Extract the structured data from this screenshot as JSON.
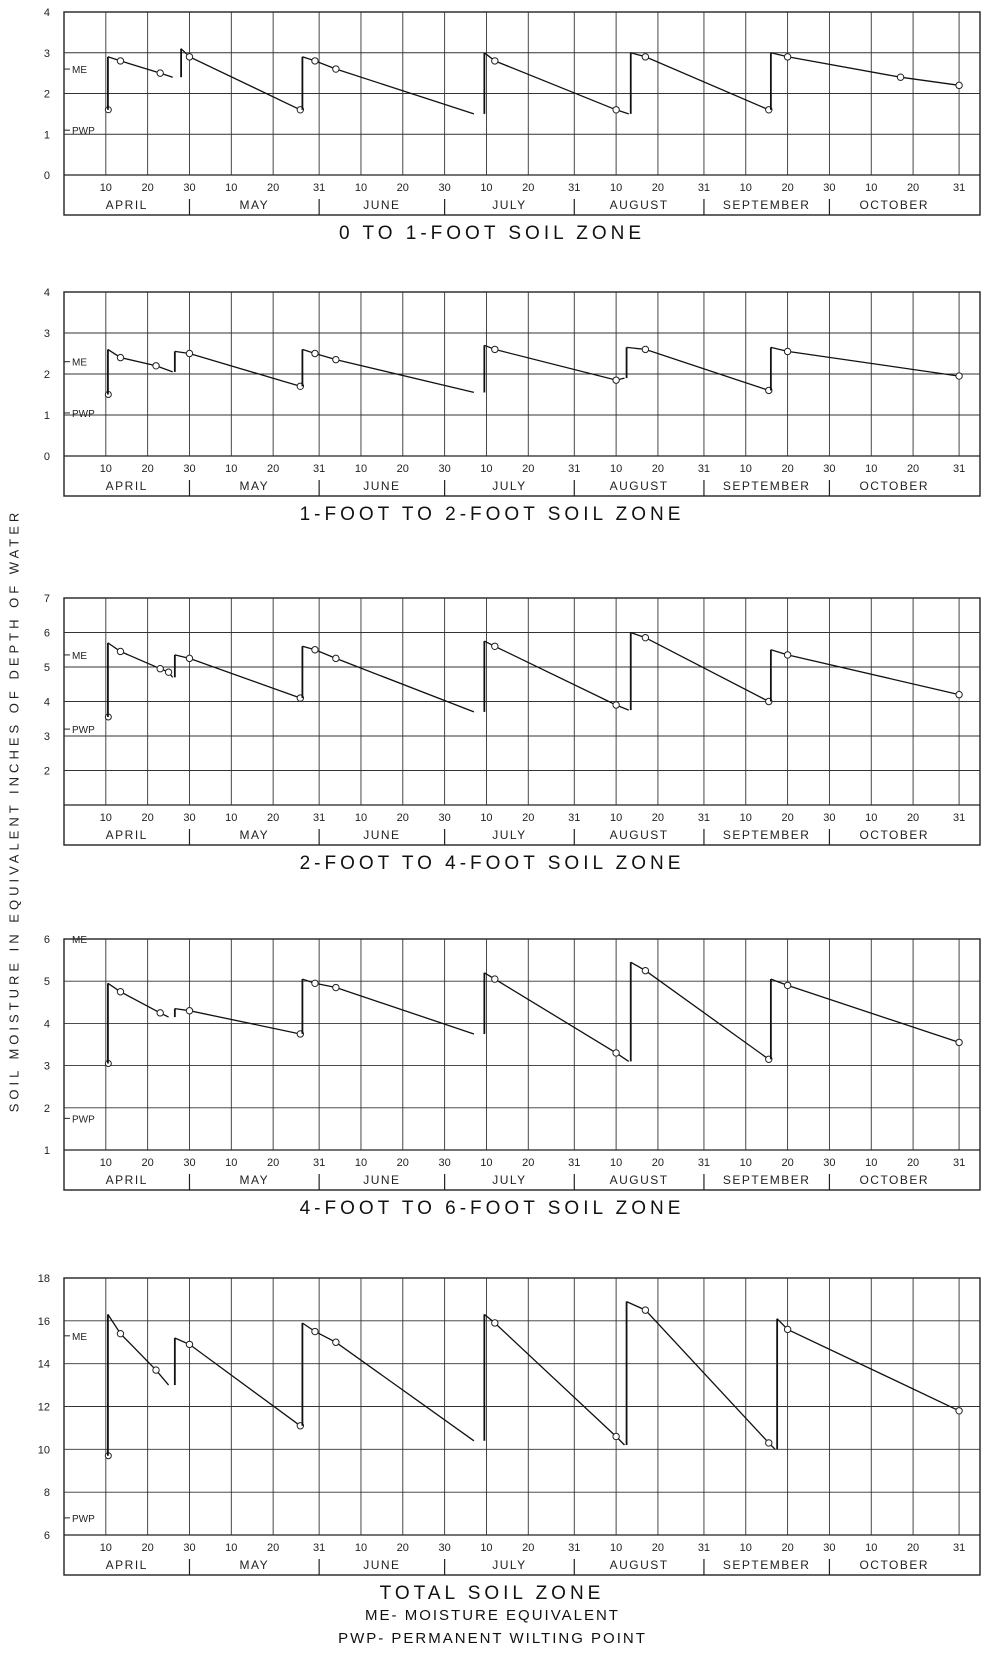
{
  "y_axis_label": "SOIL MOISTURE IN EQUIVALENT INCHES OF DEPTH OF WATER",
  "legend": {
    "me": "ME- MOISTURE EQUIVALENT",
    "pwp": "PWP- PERMANENT WILTING POINT"
  },
  "chart_data": [
    {
      "type": "line",
      "title": "0 TO 1-FOOT SOIL ZONE",
      "ylim": [
        0,
        4
      ],
      "yticks": [
        0,
        1,
        2,
        3,
        4
      ],
      "me": 2.6,
      "me_label": "ME",
      "pwp": 1.1,
      "pwp_label": "PWP",
      "start_point": [
        10.6,
        1.6
      ],
      "segments": [
        [
          [
            10.5,
            2.9
          ],
          [
            13.5,
            2.8
          ],
          [
            23,
            2.5
          ],
          [
            26,
            2.4
          ]
        ],
        [
          [
            28,
            3.1
          ],
          [
            30,
            2.9
          ],
          [
            56.5,
            1.6
          ]
        ],
        [
          [
            57,
            2.9
          ],
          [
            60,
            2.8
          ],
          [
            65,
            2.6
          ],
          [
            98,
            1.5
          ]
        ],
        [
          [
            100.5,
            3.0
          ],
          [
            103,
            2.8
          ],
          [
            132,
            1.6
          ],
          [
            135,
            1.5
          ]
        ],
        [
          [
            135.5,
            3.0
          ],
          [
            139,
            2.9
          ],
          [
            168.5,
            1.6
          ]
        ],
        [
          [
            169,
            3.0
          ],
          [
            173,
            2.9
          ],
          [
            200,
            2.4
          ],
          [
            214,
            2.2
          ]
        ]
      ]
    },
    {
      "type": "line",
      "title": "1-FOOT TO 2-FOOT SOIL ZONE",
      "ylim": [
        0,
        4
      ],
      "yticks": [
        0,
        1,
        2,
        3,
        4
      ],
      "me": 2.3,
      "me_label": "ME",
      "pwp": 1.05,
      "pwp_label": "PWP",
      "start_point": [
        10.6,
        1.5
      ],
      "segments": [
        [
          [
            10.5,
            2.6
          ],
          [
            13.5,
            2.4
          ],
          [
            22,
            2.2
          ],
          [
            26,
            2.05
          ]
        ],
        [
          [
            26.5,
            2.55
          ],
          [
            30,
            2.5
          ],
          [
            56.5,
            1.7
          ]
        ],
        [
          [
            57,
            2.6
          ],
          [
            60,
            2.5
          ],
          [
            65,
            2.35
          ],
          [
            98,
            1.55
          ]
        ],
        [
          [
            100.5,
            2.7
          ],
          [
            103,
            2.6
          ],
          [
            132,
            1.85
          ],
          [
            134,
            1.9
          ]
        ],
        [
          [
            134.5,
            2.65
          ],
          [
            139,
            2.6
          ],
          [
            168.5,
            1.6
          ]
        ],
        [
          [
            169,
            2.65
          ],
          [
            173,
            2.55
          ],
          [
            214,
            1.95
          ]
        ]
      ]
    },
    {
      "type": "line",
      "title": "2-FOOT TO 4-FOOT SOIL ZONE",
      "ylim": [
        1,
        7
      ],
      "yticks": [
        2,
        3,
        4,
        5,
        6,
        7
      ],
      "me": 5.35,
      "me_label": "ME",
      "pwp": 3.2,
      "pwp_label": "PWP",
      "start_point": [
        10.6,
        3.55
      ],
      "segments": [
        [
          [
            10.5,
            5.7
          ],
          [
            13.5,
            5.45
          ],
          [
            23,
            4.95
          ],
          [
            25,
            4.85
          ],
          [
            26,
            4.7
          ]
        ],
        [
          [
            26.5,
            5.35
          ],
          [
            30,
            5.25
          ],
          [
            56.5,
            4.1
          ]
        ],
        [
          [
            57,
            5.6
          ],
          [
            60,
            5.5
          ],
          [
            65,
            5.25
          ],
          [
            98,
            3.7
          ]
        ],
        [
          [
            100.5,
            5.75
          ],
          [
            103,
            5.6
          ],
          [
            132,
            3.9
          ],
          [
            135,
            3.75
          ]
        ],
        [
          [
            135.5,
            6.0
          ],
          [
            139,
            5.85
          ],
          [
            168.5,
            4.0
          ]
        ],
        [
          [
            169,
            5.5
          ],
          [
            173,
            5.35
          ],
          [
            214,
            4.2
          ]
        ]
      ]
    },
    {
      "type": "line",
      "title": "4-FOOT TO 6-FOOT SOIL ZONE",
      "ylim": [
        1,
        6
      ],
      "yticks": [
        1,
        2,
        3,
        4,
        5,
        6
      ],
      "me": 6.0,
      "me_label": "ME",
      "pwp": 1.75,
      "pwp_label": "PWP",
      "start_point": [
        10.6,
        3.05
      ],
      "segments": [
        [
          [
            10.5,
            4.95
          ],
          [
            13.5,
            4.75
          ],
          [
            23,
            4.25
          ],
          [
            25,
            4.15
          ]
        ],
        [
          [
            26.5,
            4.35
          ],
          [
            30,
            4.3
          ],
          [
            56.5,
            3.75
          ]
        ],
        [
          [
            57,
            5.05
          ],
          [
            60,
            4.95
          ],
          [
            65,
            4.85
          ],
          [
            98,
            3.75
          ]
        ],
        [
          [
            100.5,
            5.2
          ],
          [
            103,
            5.05
          ],
          [
            132,
            3.3
          ],
          [
            135,
            3.1
          ]
        ],
        [
          [
            135.5,
            5.45
          ],
          [
            139,
            5.25
          ],
          [
            168.5,
            3.15
          ]
        ],
        [
          [
            169,
            5.05
          ],
          [
            173,
            4.9
          ],
          [
            214,
            3.55
          ]
        ]
      ]
    },
    {
      "type": "line",
      "title": "TOTAL SOIL ZONE",
      "ylim": [
        6,
        18
      ],
      "yticks": [
        6,
        8,
        10,
        12,
        14,
        16,
        18
      ],
      "me": 15.3,
      "me_label": "ME",
      "pwp": 6.8,
      "pwp_label": "PWP",
      "start_point": [
        10.6,
        9.7
      ],
      "segments": [
        [
          [
            10.5,
            16.3
          ],
          [
            13.5,
            15.4
          ],
          [
            22,
            13.7
          ],
          [
            25,
            13.0
          ]
        ],
        [
          [
            26.5,
            15.2
          ],
          [
            30,
            14.9
          ],
          [
            56.5,
            11.1
          ]
        ],
        [
          [
            57,
            15.9
          ],
          [
            60,
            15.5
          ],
          [
            65,
            15.0
          ],
          [
            98,
            10.4
          ]
        ],
        [
          [
            100.5,
            16.3
          ],
          [
            103,
            15.9
          ],
          [
            132,
            10.6
          ],
          [
            134,
            10.2
          ]
        ],
        [
          [
            134.5,
            16.9
          ],
          [
            139,
            16.5
          ],
          [
            168.5,
            10.3
          ],
          [
            170,
            10.0
          ]
        ],
        [
          [
            170.5,
            16.1
          ],
          [
            173,
            15.6
          ],
          [
            214,
            11.8
          ]
        ]
      ]
    }
  ],
  "x_axis": {
    "tick_labels": [
      {
        "day": 10,
        "label": "10"
      },
      {
        "day": 20,
        "label": "20"
      },
      {
        "day": 30,
        "label": "30"
      },
      {
        "day": 40,
        "label": "10"
      },
      {
        "day": 50,
        "label": "20"
      },
      {
        "day": 61,
        "label": "31"
      },
      {
        "day": 71,
        "label": "10"
      },
      {
        "day": 81,
        "label": "20"
      },
      {
        "day": 91,
        "label": "30"
      },
      {
        "day": 101,
        "label": "10"
      },
      {
        "day": 111,
        "label": "20"
      },
      {
        "day": 122,
        "label": "31"
      },
      {
        "day": 132,
        "label": "10"
      },
      {
        "day": 142,
        "label": "20"
      },
      {
        "day": 153,
        "label": "31"
      },
      {
        "day": 163,
        "label": "10"
      },
      {
        "day": 173,
        "label": "20"
      },
      {
        "day": 183,
        "label": "30"
      },
      {
        "day": 193,
        "label": "10"
      },
      {
        "day": 203,
        "label": "20"
      },
      {
        "day": 214,
        "label": "31"
      }
    ],
    "months": [
      {
        "label": "APRIL",
        "start": 0,
        "end": 30
      },
      {
        "label": "MAY",
        "start": 30,
        "end": 61
      },
      {
        "label": "JUNE",
        "start": 61,
        "end": 91
      },
      {
        "label": "JULY",
        "start": 91,
        "end": 122
      },
      {
        "label": "AUGUST",
        "start": 122,
        "end": 153
      },
      {
        "label": "SEPTEMBER",
        "start": 153,
        "end": 183
      },
      {
        "label": "OCTOBER",
        "start": 183,
        "end": 214
      }
    ]
  }
}
